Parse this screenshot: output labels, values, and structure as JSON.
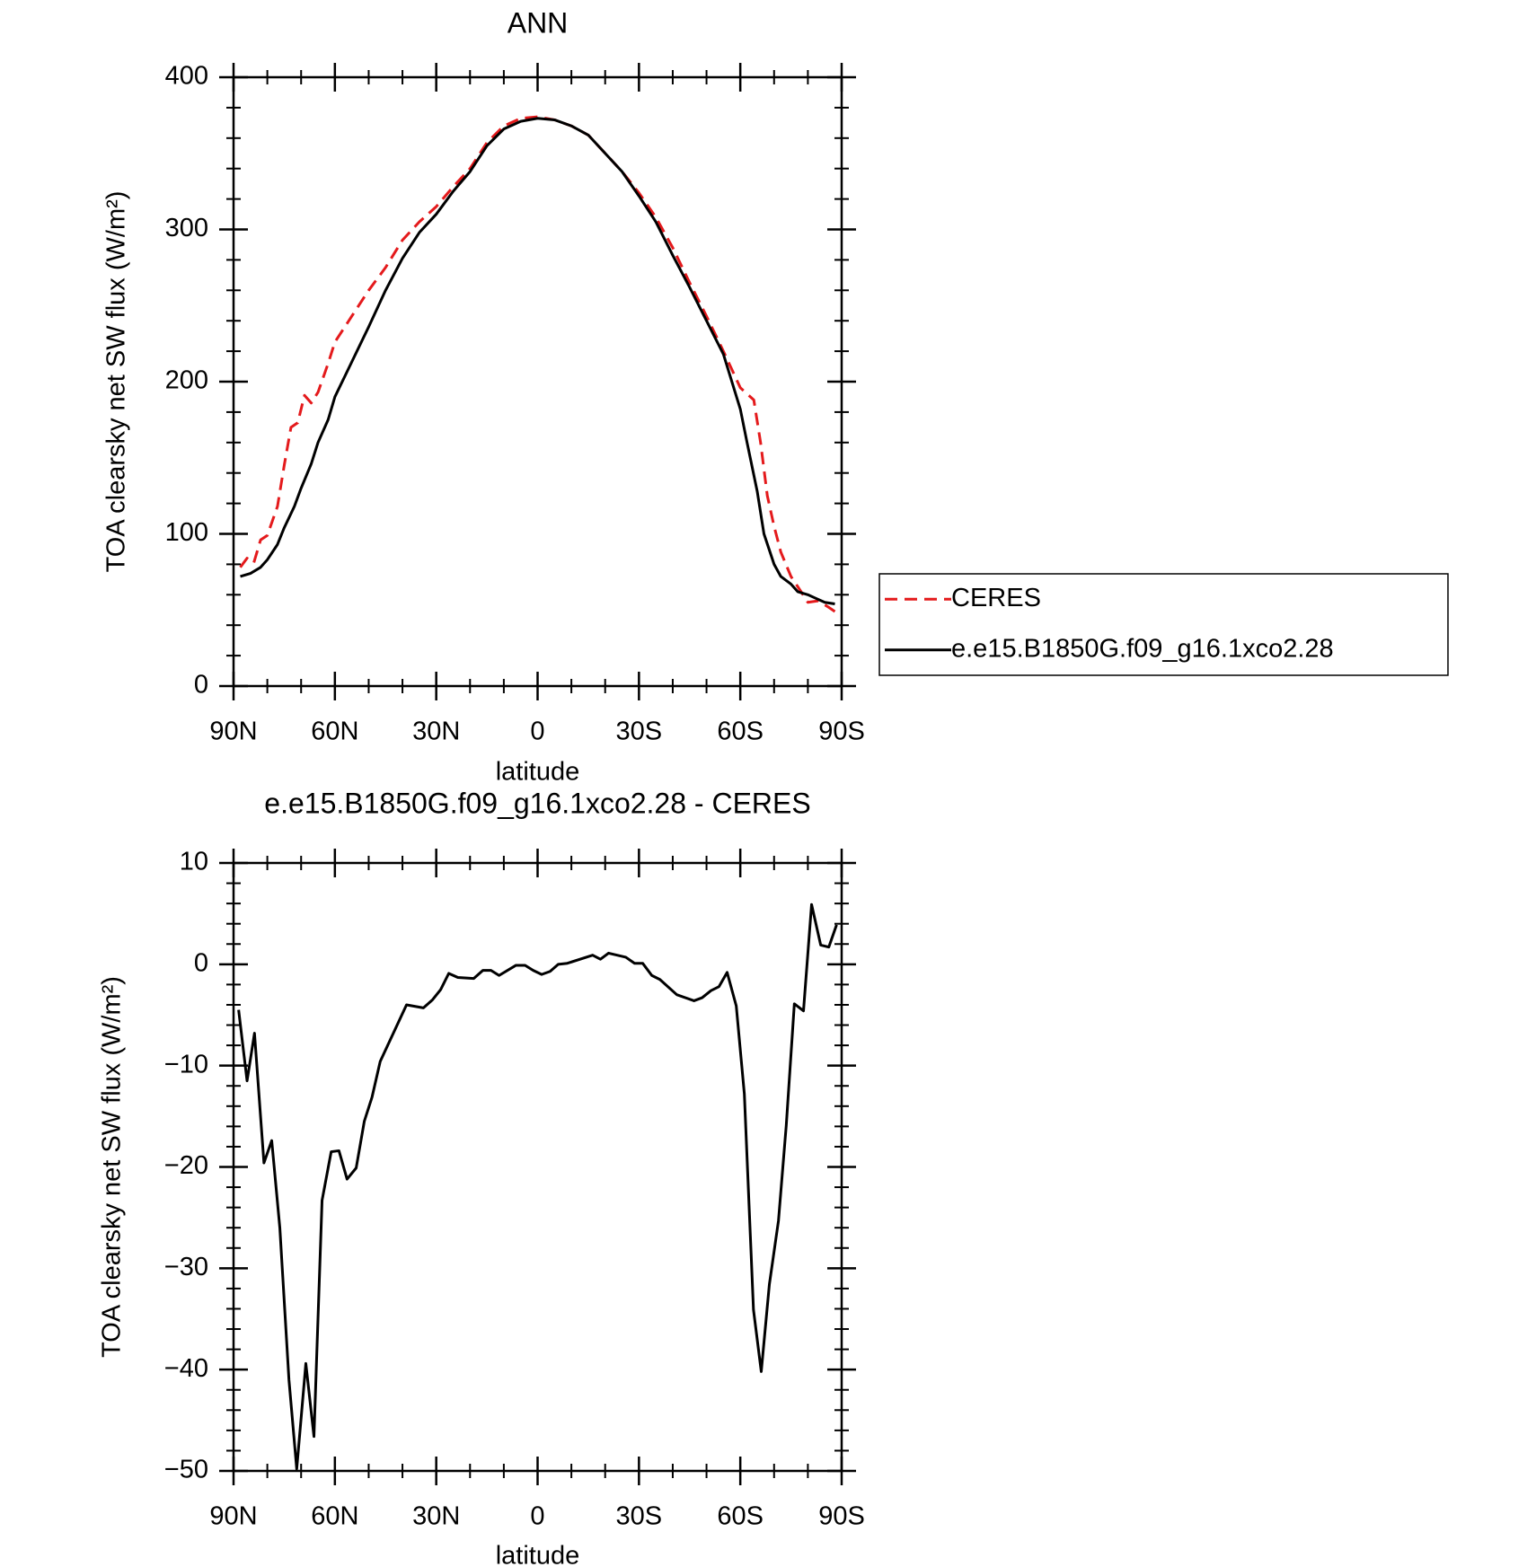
{
  "chart_data": [
    {
      "type": "line",
      "title": "ANN",
      "x_label": "latitude",
      "y_label": "TOA clearsky net SW flux (W/m²)",
      "xlim": [
        90,
        -90
      ],
      "xticks": [
        {
          "value": 90,
          "label": "90N"
        },
        {
          "value": 60,
          "label": "60N"
        },
        {
          "value": 30,
          "label": "30N"
        },
        0,
        {
          "value": -30,
          "label": "30S"
        },
        {
          "value": -60,
          "label": "60S"
        },
        {
          "value": -90,
          "label": "90S"
        }
      ],
      "ylim": [
        0,
        400
      ],
      "yticks": [
        0,
        100,
        200,
        300,
        400
      ],
      "legend": "right",
      "series": [
        {
          "name": "CERES",
          "color": "#e41a1c",
          "dash": true,
          "x": [
            88,
            86,
            84,
            82,
            80,
            77,
            75,
            73,
            71,
            69,
            67,
            65,
            62,
            60,
            55,
            50,
            45,
            40,
            35,
            30,
            25,
            20,
            15,
            10,
            5,
            0,
            -5,
            -10,
            -15,
            -20,
            -25,
            -30,
            -35,
            -40,
            -45,
            -50,
            -55,
            -60,
            -62,
            -64,
            -66,
            -68,
            -70,
            -72,
            -75,
            -78,
            -80,
            -83,
            -86,
            -88
          ],
          "values": [
            78,
            84,
            81,
            96,
            99,
            118,
            145,
            170,
            173,
            191,
            186,
            193,
            212,
            226,
            243,
            260,
            275,
            293,
            305,
            315,
            328,
            340,
            357,
            368,
            373,
            374,
            372,
            368,
            362,
            350,
            338,
            324,
            308,
            288,
            265,
            243,
            220,
            196,
            192,
            188,
            160,
            125,
            105,
            88,
            72,
            62,
            55,
            56,
            52,
            49
          ]
        },
        {
          "name": "e.e15.B1850G.f09_g16.1xco2.28",
          "color": "#000000",
          "dash": false,
          "x": [
            88,
            85,
            82,
            80,
            77,
            75,
            72,
            70,
            67,
            65,
            62,
            60,
            55,
            50,
            45,
            40,
            35,
            30,
            25,
            20,
            15,
            10,
            5,
            0,
            -5,
            -10,
            -15,
            -20,
            -25,
            -30,
            -35,
            -40,
            -45,
            -50,
            -55,
            -60,
            -62,
            -65,
            -67,
            -70,
            -72,
            -75,
            -77,
            -80,
            -82,
            -85,
            -88
          ],
          "values": [
            72,
            74,
            78,
            83,
            93,
            104,
            118,
            130,
            146,
            160,
            175,
            190,
            213,
            236,
            260,
            281,
            298,
            310,
            325,
            338,
            355,
            366,
            371,
            373,
            372,
            368,
            362,
            350,
            338,
            322,
            305,
            283,
            262,
            240,
            218,
            182,
            160,
            128,
            100,
            80,
            72,
            67,
            62,
            60,
            58,
            55,
            54
          ]
        }
      ]
    },
    {
      "type": "line",
      "title": "e.e15.B1850G.f09_g16.1xco2.28 - CERES",
      "x_label": "latitude",
      "y_label": "TOA clearsky net SW flux (W/m²)",
      "xlim": [
        90,
        -90
      ],
      "xticks": [
        {
          "value": 90,
          "label": "90N"
        },
        {
          "value": 60,
          "label": "60N"
        },
        {
          "value": 30,
          "label": "30N"
        },
        0,
        {
          "value": -30,
          "label": "30S"
        },
        {
          "value": -60,
          "label": "60S"
        },
        {
          "value": -90,
          "label": "90S"
        }
      ],
      "ylim": [
        -50,
        10
      ],
      "yticks": [
        {
          "value": -50,
          "label": "−50"
        },
        {
          "value": -40,
          "label": "−40"
        },
        {
          "value": -30,
          "label": "−30"
        },
        {
          "value": -20,
          "label": "−20"
        },
        {
          "value": -10,
          "label": "−10"
        },
        0,
        10
      ],
      "series": [
        {
          "color": "#000000",
          "dash": false,
          "x": [
            88.5,
            86,
            83.8,
            81,
            78.7,
            76.3,
            73.6,
            71.3,
            68.6,
            66.2,
            63.8,
            61.1,
            58.8,
            56.4,
            53.7,
            51.3,
            49,
            46.6,
            38.8,
            33.8,
            31.1,
            28.7,
            26.3,
            23.6,
            18.9,
            16.2,
            13.8,
            11.4,
            6.4,
            3.7,
            1.3,
            -1.2,
            -3.7,
            -6.1,
            -8.8,
            -16.3,
            -18.6,
            -21,
            -26.1,
            -28.7,
            -31.1,
            -33.8,
            -36.2,
            -41.2,
            -46.3,
            -48.7,
            -51.3,
            -53.7,
            -56.1,
            -58.8,
            -61.2,
            -63.9,
            -66.2,
            -68.6,
            -71.3,
            -73.6,
            -76,
            -78.7,
            -81.1,
            -83.8,
            -86.2,
            -88.5
          ],
          "values": [
            -4.5,
            -11.5,
            -6.8,
            -19.6,
            -17.4,
            -26,
            -41,
            -49.8,
            -39.4,
            -46.6,
            -23.3,
            -18.5,
            -18.4,
            -21.2,
            -20.1,
            -15.5,
            -13.1,
            -9.6,
            -4,
            -4.3,
            -3.5,
            -2.5,
            -0.9,
            -1.3,
            -1.4,
            -0.6,
            -0.6,
            -1.1,
            -0.1,
            -0.1,
            -0.6,
            -1,
            -0.7,
            0,
            0.1,
            0.9,
            0.5,
            1.1,
            0.7,
            0.1,
            0.1,
            -1.1,
            -1.5,
            -3,
            -3.6,
            -3.3,
            -2.6,
            -2.2,
            -0.8,
            -4.1,
            -12.8,
            -34.1,
            -40.2,
            -31.6,
            -25.3,
            -15.9,
            -3.9,
            -4.6,
            5.9,
            1.9,
            1.7,
            3.9
          ]
        }
      ]
    }
  ]
}
